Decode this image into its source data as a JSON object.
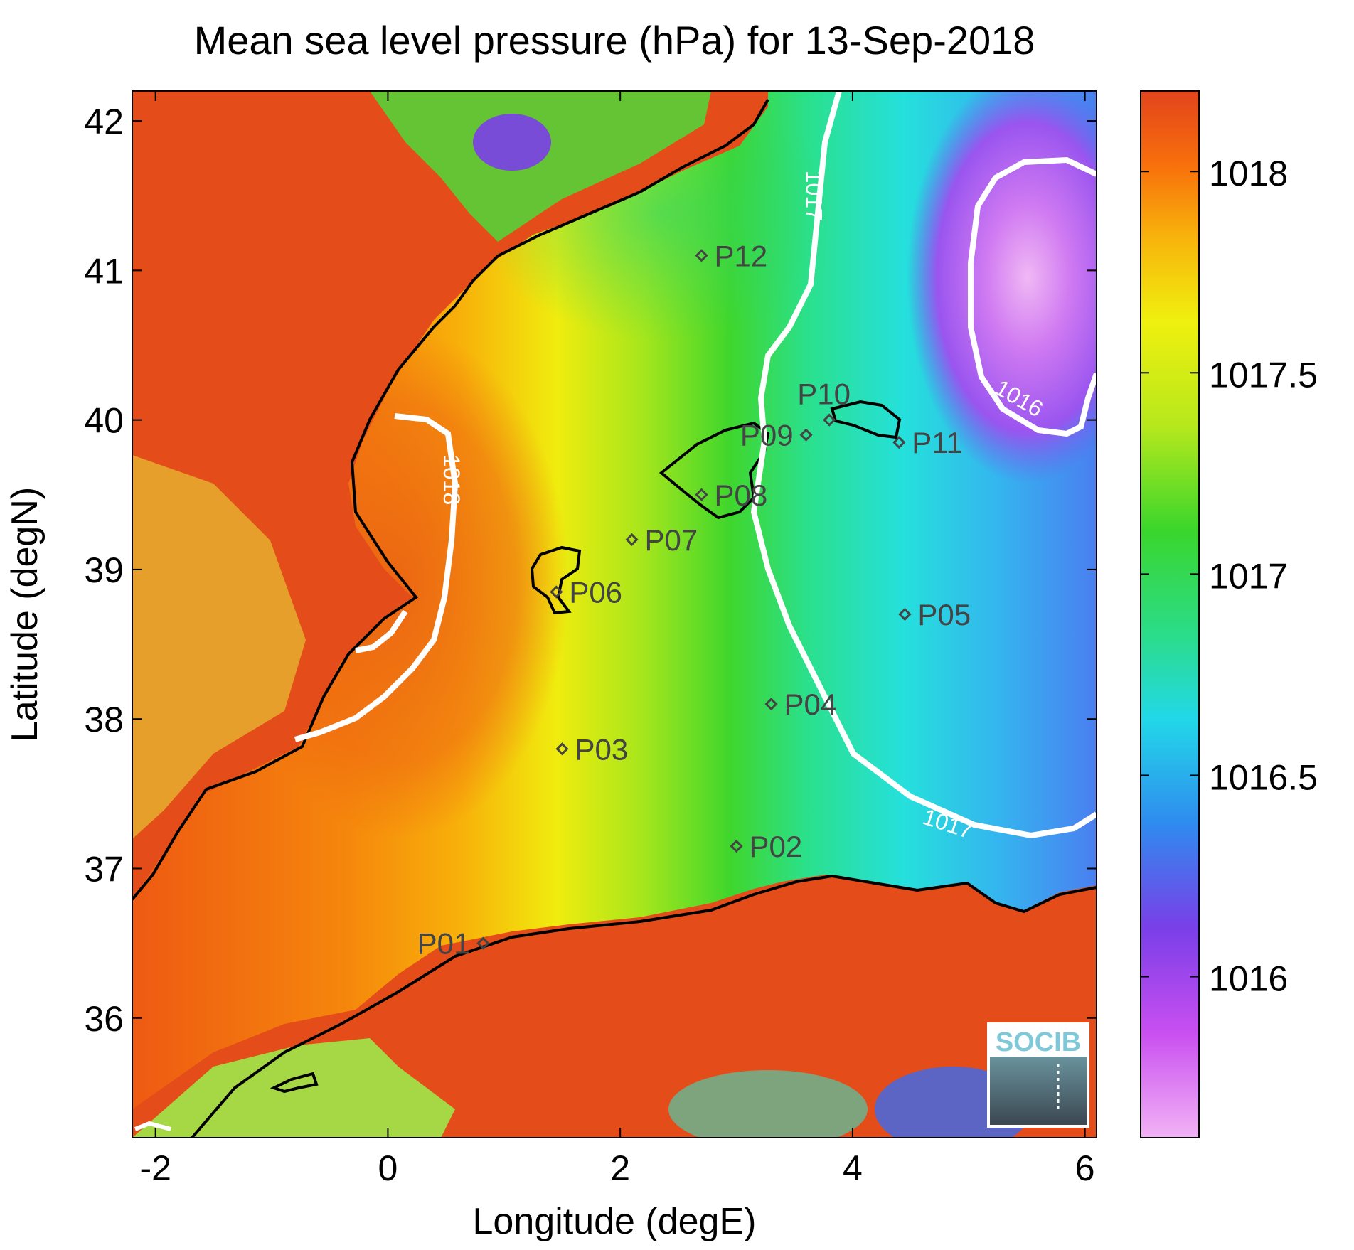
{
  "title": "Mean sea level pressure (hPa) for 13-Sep-2018",
  "xlabel": "Longitude (degE)",
  "ylabel": "Latitude (degN)",
  "xlim": [
    -2.2,
    6.1
  ],
  "ylim": [
    35.2,
    42.2
  ],
  "xticks": [
    "-2",
    "0",
    "2",
    "4",
    "6"
  ],
  "xtick_values": [
    -2,
    0,
    2,
    4,
    6
  ],
  "yticks": [
    "36",
    "37",
    "38",
    "39",
    "40",
    "41",
    "42"
  ],
  "ytick_values": [
    36,
    37,
    38,
    39,
    40,
    41,
    42
  ],
  "colorbar": {
    "range": [
      1015.6,
      1018.2
    ],
    "ticks": [
      "1016",
      "1016.5",
      "1017",
      "1017.5",
      "1018"
    ],
    "tick_values": [
      1016,
      1016.5,
      1017,
      1017.5,
      1018
    ],
    "colors": [
      "#f2b3f5",
      "#c94ff0",
      "#7a3fe8",
      "#2f8bef",
      "#22d8e8",
      "#2bdc8a",
      "#3ad62c",
      "#b6e81c",
      "#f0f00e",
      "#f8b30c",
      "#f86f0c",
      "#e2441c"
    ]
  },
  "contour_labels": [
    {
      "text": "1018",
      "lon": 0.48,
      "lat": 39.6,
      "rotate": 90
    },
    {
      "text": "1017",
      "lon": 3.6,
      "lat": 41.5,
      "rotate": 90
    },
    {
      "text": "1017",
      "lon": 4.8,
      "lat": 37.25,
      "rotate": 18
    },
    {
      "text": "1016",
      "lon": 5.4,
      "lat": 40.1,
      "rotate": 30
    }
  ],
  "stations": [
    {
      "name": "P01",
      "lon": 0.82,
      "lat": 36.5,
      "label_side": "left"
    },
    {
      "name": "P02",
      "lon": 3.0,
      "lat": 37.15,
      "label_side": "right"
    },
    {
      "name": "P03",
      "lon": 1.5,
      "lat": 37.8,
      "label_side": "right"
    },
    {
      "name": "P04",
      "lon": 3.3,
      "lat": 38.1,
      "label_side": "right"
    },
    {
      "name": "P05",
      "lon": 4.45,
      "lat": 38.7,
      "label_side": "right"
    },
    {
      "name": "P06",
      "lon": 1.45,
      "lat": 38.85,
      "label_side": "right"
    },
    {
      "name": "P07",
      "lon": 2.1,
      "lat": 39.2,
      "label_side": "right"
    },
    {
      "name": "P08",
      "lon": 2.7,
      "lat": 39.5,
      "label_side": "right"
    },
    {
      "name": "P09",
      "lon": 3.6,
      "lat": 39.9,
      "label_side": "left"
    },
    {
      "name": "P10",
      "lon": 3.8,
      "lat": 40.0,
      "label_side": "above"
    },
    {
      "name": "P11",
      "lon": 4.4,
      "lat": 39.85,
      "label_side": "right"
    },
    {
      "name": "P12",
      "lon": 2.7,
      "lat": 41.1,
      "label_side": "right"
    }
  ],
  "logo": {
    "text": "SOCIB"
  }
}
